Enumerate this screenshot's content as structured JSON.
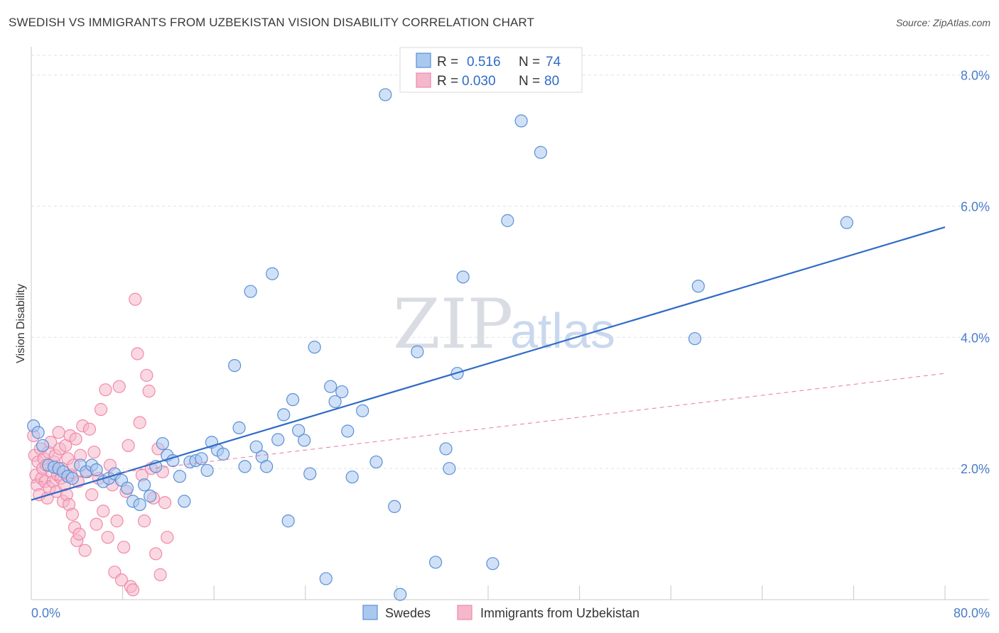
{
  "title": "SWEDISH VS IMMIGRANTS FROM UZBEKISTAN VISION DISABILITY CORRELATION CHART",
  "source": "Source: ZipAtlas.com",
  "watermark": {
    "zip": "ZIP",
    "atlas": "atlas"
  },
  "legend": {
    "rows": [
      {
        "r_label": "R =",
        "r_value": "0.516",
        "n_label": "N =",
        "n_value": "74",
        "color": "#a9c8f0"
      },
      {
        "r_label": "R =",
        "r_value": "0.030",
        "n_label": "N =",
        "n_value": "80",
        "color": "#f5b8cb"
      }
    ]
  },
  "bottom_legend": [
    "Swedes",
    "Immigrants from Uzbekistan"
  ],
  "chart_data": {
    "type": "scatter",
    "title": "SWEDISH VS IMMIGRANTS FROM UZBEKISTAN VISION DISABILITY CORRELATION CHART",
    "xlabel": "",
    "ylabel": "Vision Disability",
    "xlim": [
      0,
      80
    ],
    "ylim": [
      0,
      8.3
    ],
    "x_tick_labels": [
      "0.0%",
      "80.0%"
    ],
    "y_ticks": [
      2,
      4,
      6,
      8
    ],
    "y_tick_labels": [
      "2.0%",
      "4.0%",
      "6.0%",
      "8.0%"
    ],
    "grid": true,
    "legend_position": "top-center",
    "series": [
      {
        "name": "Swedes",
        "color": "#5b8fd6",
        "fill": "#a9c8f0",
        "trend": {
          "x": [
            0,
            80
          ],
          "y": [
            1.52,
            5.68
          ],
          "style": "solid",
          "color": "#2f6bc7"
        },
        "points": [
          [
            0.2,
            2.65
          ],
          [
            0.6,
            2.55
          ],
          [
            1.0,
            2.35
          ],
          [
            1.5,
            2.05
          ],
          [
            2.0,
            2.02
          ],
          [
            2.4,
            2.0
          ],
          [
            2.8,
            1.95
          ],
          [
            3.2,
            1.88
          ],
          [
            3.6,
            1.85
          ],
          [
            4.3,
            2.05
          ],
          [
            4.8,
            1.95
          ],
          [
            5.3,
            2.05
          ],
          [
            5.7,
            1.98
          ],
          [
            6.3,
            1.8
          ],
          [
            6.8,
            1.85
          ],
          [
            7.3,
            1.92
          ],
          [
            7.9,
            1.82
          ],
          [
            8.4,
            1.7
          ],
          [
            8.9,
            1.5
          ],
          [
            9.5,
            1.45
          ],
          [
            9.9,
            1.75
          ],
          [
            10.4,
            1.58
          ],
          [
            10.9,
            2.03
          ],
          [
            11.5,
            2.38
          ],
          [
            11.9,
            2.2
          ],
          [
            12.4,
            2.12
          ],
          [
            13.0,
            1.88
          ],
          [
            13.4,
            1.5
          ],
          [
            13.9,
            2.1
          ],
          [
            14.4,
            2.12
          ],
          [
            14.9,
            2.15
          ],
          [
            15.4,
            1.97
          ],
          [
            15.8,
            2.4
          ],
          [
            16.3,
            2.28
          ],
          [
            16.8,
            2.22
          ],
          [
            17.8,
            3.57
          ],
          [
            18.2,
            2.62
          ],
          [
            18.7,
            2.03
          ],
          [
            19.2,
            4.7
          ],
          [
            19.7,
            2.33
          ],
          [
            20.2,
            2.18
          ],
          [
            20.6,
            2.03
          ],
          [
            21.1,
            4.97
          ],
          [
            21.6,
            2.44
          ],
          [
            22.1,
            2.82
          ],
          [
            22.5,
            1.2
          ],
          [
            22.9,
            3.05
          ],
          [
            23.4,
            2.58
          ],
          [
            23.9,
            2.43
          ],
          [
            24.4,
            1.92
          ],
          [
            24.8,
            3.85
          ],
          [
            25.8,
            0.32
          ],
          [
            26.2,
            3.25
          ],
          [
            26.6,
            3.02
          ],
          [
            27.2,
            3.17
          ],
          [
            27.7,
            2.57
          ],
          [
            28.1,
            1.87
          ],
          [
            29.0,
            2.88
          ],
          [
            30.2,
            2.1
          ],
          [
            31.0,
            7.7
          ],
          [
            31.8,
            1.42
          ],
          [
            32.3,
            0.08
          ],
          [
            33.8,
            3.78
          ],
          [
            35.4,
            0.57
          ],
          [
            36.3,
            2.3
          ],
          [
            36.6,
            2.0
          ],
          [
            37.3,
            3.45
          ],
          [
            37.8,
            4.92
          ],
          [
            40.4,
            0.55
          ],
          [
            41.7,
            5.78
          ],
          [
            42.9,
            7.3
          ],
          [
            44.6,
            6.82
          ],
          [
            58.1,
            3.98
          ],
          [
            58.4,
            4.78
          ],
          [
            71.4,
            5.75
          ]
        ]
      },
      {
        "name": "Immigrants from Uzbekistan",
        "color": "#f08aab",
        "fill": "#f5b8cb",
        "trend": {
          "x": [
            0,
            80
          ],
          "y": [
            1.78,
            3.45
          ],
          "style": "dashed",
          "color": "#e67c9d"
        },
        "points": [
          [
            0.2,
            2.5
          ],
          [
            0.3,
            2.2
          ],
          [
            0.4,
            1.9
          ],
          [
            0.5,
            1.75
          ],
          [
            0.6,
            2.1
          ],
          [
            0.7,
            1.6
          ],
          [
            0.8,
            2.3
          ],
          [
            0.9,
            1.85
          ],
          [
            1.0,
            2.0
          ],
          [
            1.1,
            2.15
          ],
          [
            1.2,
            1.8
          ],
          [
            1.3,
            2.05
          ],
          [
            1.4,
            1.55
          ],
          [
            1.5,
            2.25
          ],
          [
            1.6,
            1.7
          ],
          [
            1.7,
            2.4
          ],
          [
            1.8,
            1.95
          ],
          [
            1.9,
            1.8
          ],
          [
            2.0,
            2.1
          ],
          [
            2.1,
            2.2
          ],
          [
            2.2,
            1.65
          ],
          [
            2.3,
            1.9
          ],
          [
            2.4,
            2.55
          ],
          [
            2.5,
            2.3
          ],
          [
            2.6,
            1.85
          ],
          [
            2.7,
            2.0
          ],
          [
            2.8,
            1.5
          ],
          [
            2.9,
            1.75
          ],
          [
            3.0,
            2.35
          ],
          [
            3.1,
            1.6
          ],
          [
            3.2,
            2.15
          ],
          [
            3.3,
            1.45
          ],
          [
            3.4,
            2.5
          ],
          [
            3.5,
            1.9
          ],
          [
            3.6,
            1.3
          ],
          [
            3.7,
            2.05
          ],
          [
            3.8,
            1.1
          ],
          [
            3.9,
            2.45
          ],
          [
            4.0,
            0.9
          ],
          [
            4.1,
            1.8
          ],
          [
            4.2,
            1.0
          ],
          [
            4.3,
            2.2
          ],
          [
            4.5,
            2.65
          ],
          [
            4.7,
            0.75
          ],
          [
            4.9,
            1.95
          ],
          [
            5.1,
            2.6
          ],
          [
            5.3,
            1.6
          ],
          [
            5.5,
            2.25
          ],
          [
            5.7,
            1.15
          ],
          [
            5.9,
            1.85
          ],
          [
            6.1,
            2.9
          ],
          [
            6.3,
            1.35
          ],
          [
            6.5,
            3.2
          ],
          [
            6.7,
            0.95
          ],
          [
            6.9,
            2.05
          ],
          [
            7.1,
            1.75
          ],
          [
            7.3,
            0.42
          ],
          [
            7.5,
            1.2
          ],
          [
            7.7,
            3.25
          ],
          [
            7.9,
            0.3
          ],
          [
            8.1,
            0.8
          ],
          [
            8.3,
            1.65
          ],
          [
            8.5,
            2.35
          ],
          [
            8.7,
            0.2
          ],
          [
            8.9,
            0.15
          ],
          [
            9.1,
            4.58
          ],
          [
            9.3,
            3.75
          ],
          [
            9.5,
            2.7
          ],
          [
            9.7,
            1.9
          ],
          [
            9.9,
            1.2
          ],
          [
            10.1,
            3.42
          ],
          [
            10.3,
            3.18
          ],
          [
            10.5,
            2.0
          ],
          [
            10.7,
            1.55
          ],
          [
            10.9,
            0.7
          ],
          [
            11.1,
            2.3
          ],
          [
            11.3,
            0.38
          ],
          [
            11.5,
            1.95
          ],
          [
            11.7,
            1.48
          ],
          [
            11.9,
            0.95
          ]
        ]
      }
    ]
  }
}
